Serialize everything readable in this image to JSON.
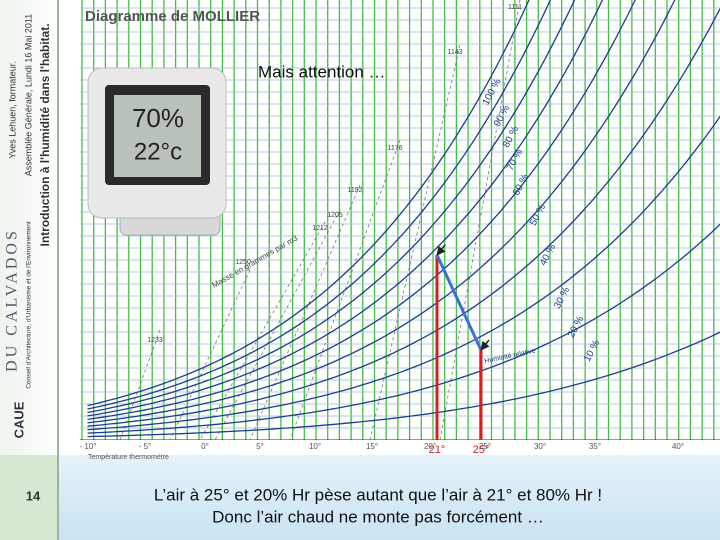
{
  "sidebar": {
    "author": "Yves Lehuen, formateur.",
    "event": "Assemblée Générale, Lundi 16 Mai 2011",
    "topic": "Introduction à l'humidité dans l'habitat.",
    "org": "DU CALVADOS",
    "org_full": "Conseil d'Architecture, d'Urbanisme et de l'Environnement",
    "logo": "CAUE",
    "page": "14"
  },
  "slide": {
    "heading": "Mais attention …",
    "caption": [
      "L’air à 25° et 20% Hr pèse autant que l’air à 21° et 80% Hr !",
      "Donc l’air chaud ne monte pas forcément …"
    ]
  },
  "diagram": {
    "title": "Diagramme de MOLLIER",
    "hygrometer": [
      "70%",
      "22°c"
    ],
    "humidity_labels": [
      "100 %",
      "90 %",
      "80 %",
      "70 %",
      "60 %",
      "50 %",
      "40 %",
      "30 %",
      "20 %",
      "10 %"
    ],
    "humidity_axis": "Humidité relative",
    "temperatures": [
      "- 10°",
      "- 5°",
      "0°",
      "5°",
      "10°",
      "15°",
      "20°",
      "25°",
      "30°",
      "35°",
      "40°"
    ],
    "temperature_axis": "Température thermomètre",
    "density_axis": "Masse en grammes par m3",
    "densities": [
      "1111",
      "1143",
      "1176",
      "1192",
      "1205",
      "1212",
      "1250",
      "1233"
    ],
    "markers": [
      "21°",
      "25°"
    ]
  }
}
